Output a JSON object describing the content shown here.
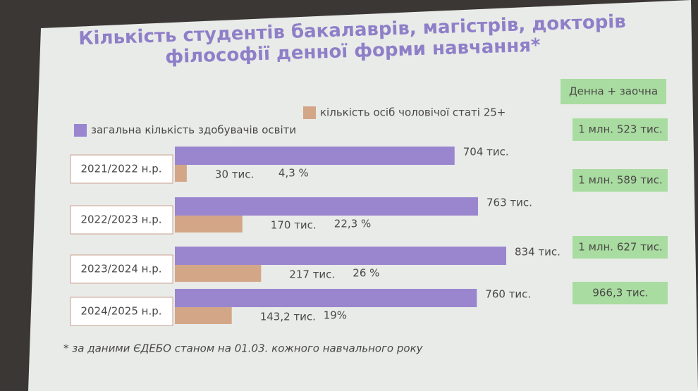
{
  "chart_data": {
    "type": "bar",
    "orientation": "horizontal",
    "title": "Кількість студентів бакалаврів, магістрів, докторів філософії денної форми навчання*",
    "categories": [
      "2021/2022 н.р.",
      "2022/2023 н.р.",
      "2023/2024 н.р.",
      "2024/2025 н.р."
    ],
    "series": [
      {
        "name": "загальна кількість здобувачів освіти",
        "color": "#9a86cf",
        "values": [
          704,
          763,
          834,
          760
        ],
        "value_labels": [
          "704 тис.",
          "763 тис.",
          "834 тис.",
          "760 тис."
        ]
      },
      {
        "name": "кількість осіб чоловічої статі 25+",
        "color": "#d3a688",
        "values": [
          30,
          170,
          217,
          143.2
        ],
        "value_labels": [
          "30 тис.",
          "170 тис.",
          "217 тис.",
          "143,2 тис."
        ]
      }
    ],
    "share_labels": [
      "4,3 %",
      "22,3 %",
      "26 %",
      "19%"
    ],
    "combined": {
      "title": "Денна + заочна",
      "labels": [
        "1 млн. 523 тис.",
        "1 млн. 589 тис.",
        "1 млн. 627 тис.",
        "966,3 тис."
      ]
    },
    "note": "* за даними ЄДЕБО станом на 01.03. кожного навчального року"
  }
}
